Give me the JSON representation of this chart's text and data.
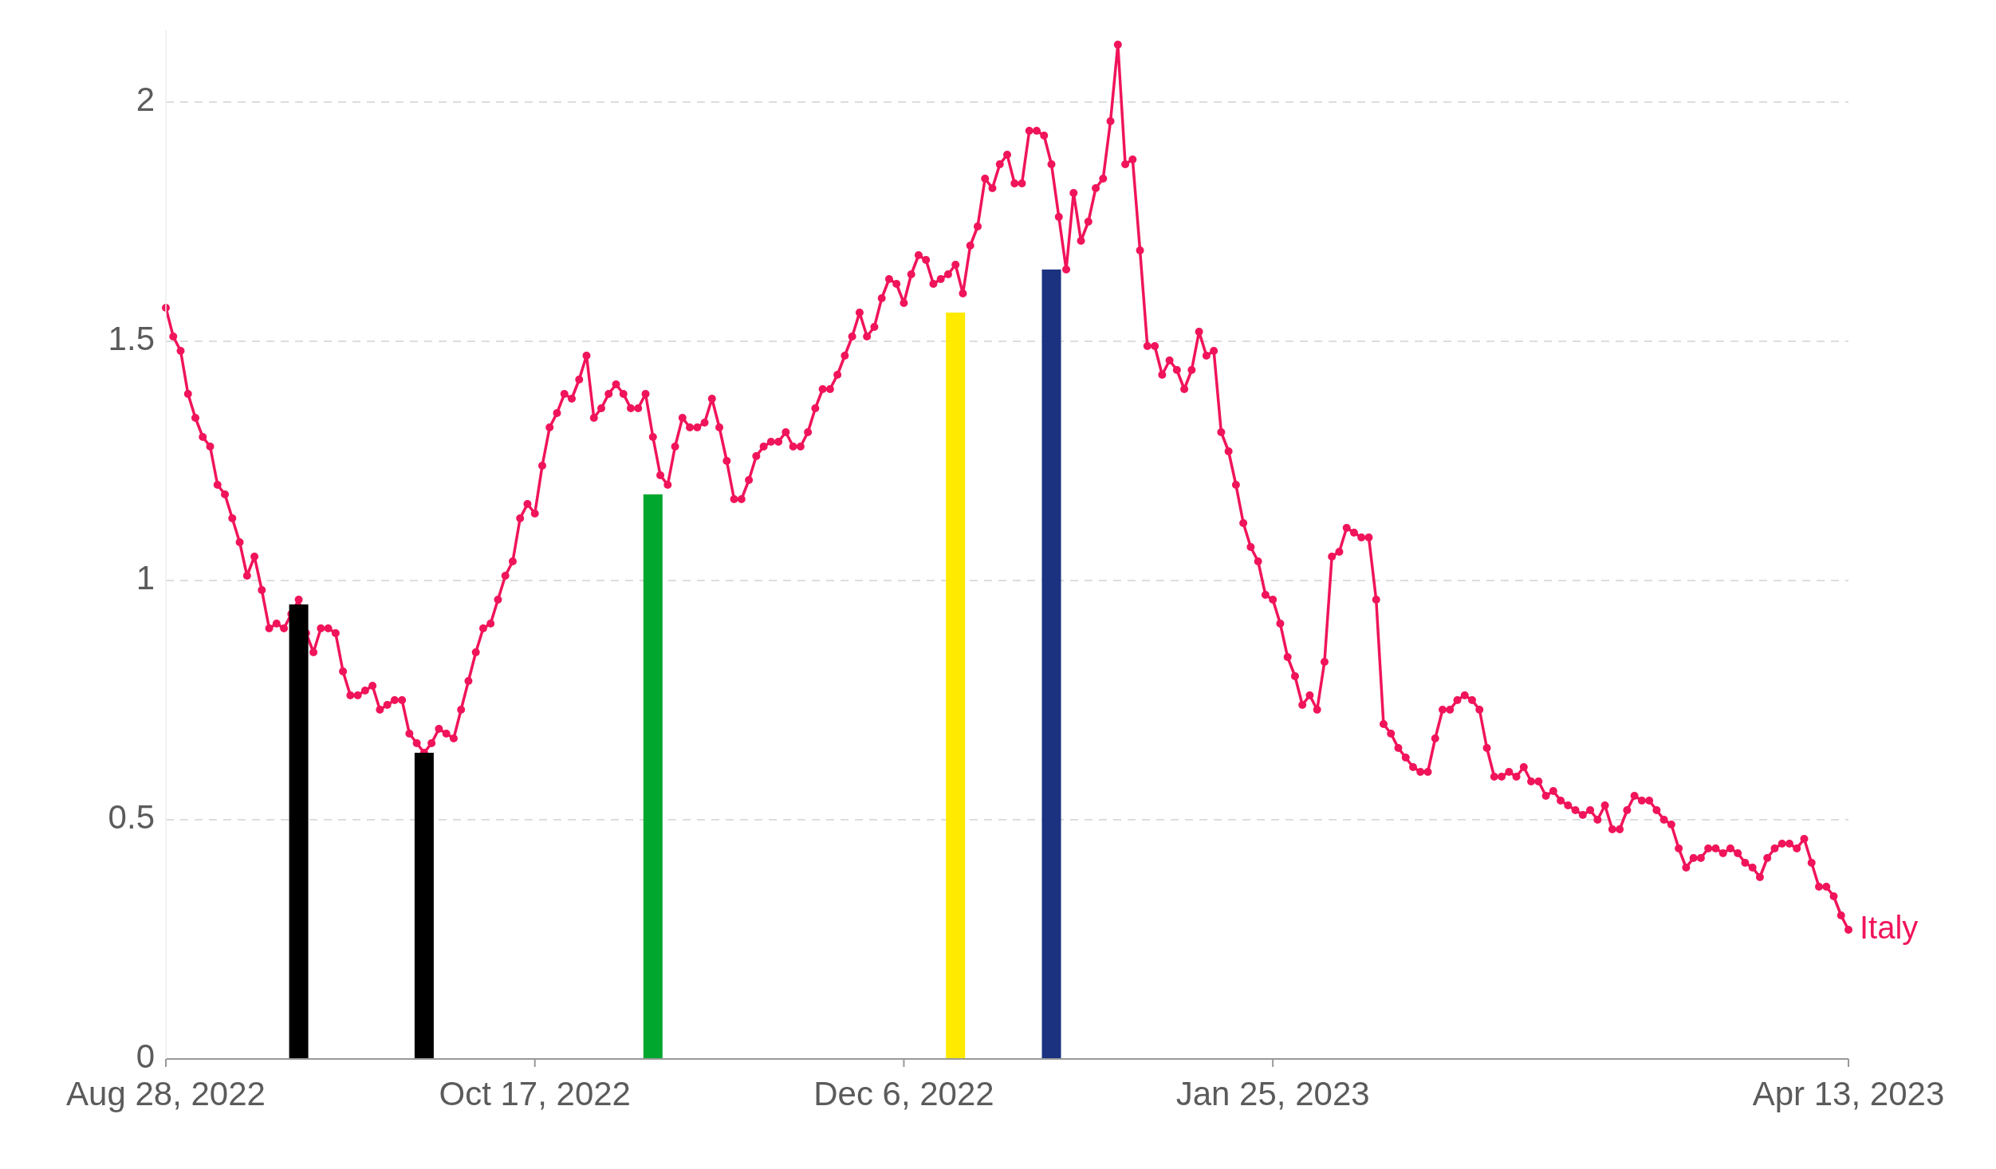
{
  "chart_data": {
    "type": "line",
    "xlim": [
      "2022-08-28",
      "2023-04-13"
    ],
    "xticks": [
      {
        "value": "2022-08-28",
        "label": "Aug 28, 2022"
      },
      {
        "value": "2022-10-17",
        "label": "Oct 17, 2022"
      },
      {
        "value": "2022-12-06",
        "label": "Dec 6, 2022"
      },
      {
        "value": "2023-01-25",
        "label": "Jan 25, 2023"
      },
      {
        "value": "2023-04-13",
        "label": "Apr 13, 2023"
      }
    ],
    "ylim": [
      0,
      2.15
    ],
    "yticks": [
      0,
      0.5,
      1,
      1.5,
      2
    ],
    "grid": "y",
    "legend": false,
    "marker": "circle",
    "line_style": "solid",
    "series": [
      {
        "name": "Italy",
        "color": "#f0145a",
        "x": [
          "2022-08-28",
          "2022-08-29",
          "2022-08-30",
          "2022-08-31",
          "2022-09-01",
          "2022-09-02",
          "2022-09-03",
          "2022-09-04",
          "2022-09-05",
          "2022-09-06",
          "2022-09-07",
          "2022-09-08",
          "2022-09-09",
          "2022-09-10",
          "2022-09-11",
          "2022-09-12",
          "2022-09-13",
          "2022-09-14",
          "2022-09-15",
          "2022-09-16",
          "2022-09-17",
          "2022-09-18",
          "2022-09-19",
          "2022-09-20",
          "2022-09-21",
          "2022-09-22",
          "2022-09-23",
          "2022-09-24",
          "2022-09-25",
          "2022-09-26",
          "2022-09-27",
          "2022-09-28",
          "2022-09-29",
          "2022-09-30",
          "2022-10-01",
          "2022-10-02",
          "2022-10-03",
          "2022-10-04",
          "2022-10-05",
          "2022-10-06",
          "2022-10-07",
          "2022-10-08",
          "2022-10-09",
          "2022-10-10",
          "2022-10-11",
          "2022-10-12",
          "2022-10-13",
          "2022-10-14",
          "2022-10-15",
          "2022-10-16",
          "2022-10-17",
          "2022-10-18",
          "2022-10-19",
          "2022-10-20",
          "2022-10-21",
          "2022-10-22",
          "2022-10-23",
          "2022-10-24",
          "2022-10-25",
          "2022-10-26",
          "2022-10-27",
          "2022-10-28",
          "2022-10-29",
          "2022-10-30",
          "2022-10-31",
          "2022-11-01",
          "2022-11-02",
          "2022-11-03",
          "2022-11-04",
          "2022-11-05",
          "2022-11-06",
          "2022-11-07",
          "2022-11-08",
          "2022-11-09",
          "2022-11-10",
          "2022-11-11",
          "2022-11-12",
          "2022-11-13",
          "2022-11-14",
          "2022-11-15",
          "2022-11-16",
          "2022-11-17",
          "2022-11-18",
          "2022-11-19",
          "2022-11-20",
          "2022-11-21",
          "2022-11-22",
          "2022-11-23",
          "2022-11-24",
          "2022-11-25",
          "2022-11-26",
          "2022-11-27",
          "2022-11-28",
          "2022-11-29",
          "2022-11-30",
          "2022-12-01",
          "2022-12-02",
          "2022-12-03",
          "2022-12-04",
          "2022-12-05",
          "2022-12-06",
          "2022-12-07",
          "2022-12-08",
          "2022-12-09",
          "2022-12-10",
          "2022-12-11",
          "2022-12-12",
          "2022-12-13",
          "2022-12-14",
          "2022-12-15",
          "2022-12-16",
          "2022-12-17",
          "2022-12-18",
          "2022-12-19",
          "2022-12-20",
          "2022-12-21",
          "2022-12-22",
          "2022-12-23",
          "2022-12-24",
          "2022-12-25",
          "2022-12-26",
          "2022-12-27",
          "2022-12-28",
          "2022-12-29",
          "2022-12-30",
          "2022-12-31",
          "2023-01-01",
          "2023-01-02",
          "2023-01-03",
          "2023-01-04",
          "2023-01-05",
          "2023-01-06",
          "2023-01-07",
          "2023-01-08",
          "2023-01-09",
          "2023-01-10",
          "2023-01-11",
          "2023-01-12",
          "2023-01-13",
          "2023-01-14",
          "2023-01-15",
          "2023-01-16",
          "2023-01-17",
          "2023-01-18",
          "2023-01-19",
          "2023-01-20",
          "2023-01-21",
          "2023-01-22",
          "2023-01-23",
          "2023-01-24",
          "2023-01-25",
          "2023-01-26",
          "2023-01-27",
          "2023-01-28",
          "2023-01-29",
          "2023-01-30",
          "2023-01-31",
          "2023-02-01",
          "2023-02-02",
          "2023-02-03",
          "2023-02-04",
          "2023-02-05",
          "2023-02-06",
          "2023-02-07",
          "2023-02-08",
          "2023-02-09",
          "2023-02-10",
          "2023-02-11",
          "2023-02-12",
          "2023-02-13",
          "2023-02-14",
          "2023-02-15",
          "2023-02-16",
          "2023-02-17",
          "2023-02-18",
          "2023-02-19",
          "2023-02-20",
          "2023-02-21",
          "2023-02-22",
          "2023-02-23",
          "2023-02-24",
          "2023-02-25",
          "2023-02-26",
          "2023-02-27",
          "2023-02-28",
          "2023-03-01",
          "2023-03-02",
          "2023-03-03",
          "2023-03-04",
          "2023-03-05",
          "2023-03-06",
          "2023-03-07",
          "2023-03-08",
          "2023-03-09",
          "2023-03-10",
          "2023-03-11",
          "2023-03-12",
          "2023-03-13",
          "2023-03-14",
          "2023-03-15",
          "2023-03-16",
          "2023-03-17",
          "2023-03-18",
          "2023-03-19",
          "2023-03-20",
          "2023-03-21",
          "2023-03-22",
          "2023-03-23",
          "2023-03-24",
          "2023-03-25",
          "2023-03-26",
          "2023-03-27",
          "2023-03-28",
          "2023-03-29",
          "2023-03-30",
          "2023-03-31",
          "2023-04-01",
          "2023-04-02",
          "2023-04-03",
          "2023-04-04",
          "2023-04-05",
          "2023-04-06",
          "2023-04-07",
          "2023-04-08",
          "2023-04-09",
          "2023-04-10",
          "2023-04-11",
          "2023-04-12",
          "2023-04-13"
        ],
        "values": [
          1.57,
          1.51,
          1.48,
          1.39,
          1.34,
          1.3,
          1.28,
          1.2,
          1.18,
          1.13,
          1.08,
          1.01,
          1.05,
          0.98,
          0.9,
          0.91,
          0.9,
          0.93,
          0.96,
          0.89,
          0.85,
          0.9,
          0.9,
          0.89,
          0.81,
          0.76,
          0.76,
          0.77,
          0.78,
          0.73,
          0.74,
          0.75,
          0.75,
          0.68,
          0.66,
          0.64,
          0.66,
          0.69,
          0.68,
          0.67,
          0.73,
          0.79,
          0.85,
          0.9,
          0.91,
          0.96,
          1.01,
          1.04,
          1.13,
          1.16,
          1.14,
          1.24,
          1.32,
          1.35,
          1.39,
          1.38,
          1.42,
          1.47,
          1.34,
          1.36,
          1.39,
          1.41,
          1.39,
          1.36,
          1.36,
          1.39,
          1.3,
          1.22,
          1.2,
          1.28,
          1.34,
          1.32,
          1.32,
          1.33,
          1.38,
          1.32,
          1.25,
          1.17,
          1.17,
          1.21,
          1.26,
          1.28,
          1.29,
          1.29,
          1.31,
          1.28,
          1.28,
          1.31,
          1.36,
          1.4,
          1.4,
          1.43,
          1.47,
          1.51,
          1.56,
          1.51,
          1.53,
          1.59,
          1.63,
          1.62,
          1.58,
          1.64,
          1.68,
          1.67,
          1.62,
          1.63,
          1.64,
          1.66,
          1.6,
          1.7,
          1.74,
          1.84,
          1.82,
          1.87,
          1.89,
          1.83,
          1.83,
          1.94,
          1.94,
          1.93,
          1.87,
          1.76,
          1.65,
          1.81,
          1.71,
          1.75,
          1.82,
          1.84,
          1.96,
          2.12,
          1.87,
          1.88,
          1.69,
          1.49,
          1.49,
          1.43,
          1.46,
          1.44,
          1.4,
          1.44,
          1.52,
          1.47,
          1.48,
          1.31,
          1.27,
          1.2,
          1.12,
          1.07,
          1.04,
          0.97,
          0.96,
          0.91,
          0.84,
          0.8,
          0.74,
          0.76,
          0.73,
          0.83,
          1.05,
          1.06,
          1.11,
          1.1,
          1.09,
          1.09,
          0.96,
          0.7,
          0.68,
          0.65,
          0.63,
          0.61,
          0.6,
          0.6,
          0.67,
          0.73,
          0.73,
          0.75,
          0.76,
          0.75,
          0.73,
          0.65,
          0.59,
          0.59,
          0.6,
          0.59,
          0.61,
          0.58,
          0.58,
          0.55,
          0.56,
          0.54,
          0.53,
          0.52,
          0.51,
          0.52,
          0.5,
          0.53,
          0.48,
          0.48,
          0.52,
          0.55,
          0.54,
          0.54,
          0.52,
          0.5,
          0.49,
          0.44,
          0.4,
          0.42,
          0.42,
          0.44,
          0.44,
          0.43,
          0.44,
          0.43,
          0.41,
          0.4,
          0.38,
          0.42,
          0.44,
          0.45,
          0.45,
          0.44,
          0.46,
          0.41,
          0.36,
          0.36,
          0.34,
          0.3,
          0.27
        ]
      },
      {
        "type": "bar",
        "x": [
          "2022-09-15",
          "2022-10-02",
          "2022-11-02",
          "2022-12-13",
          "2022-12-26"
        ],
        "values": [
          0.95,
          0.64,
          1.18,
          1.56,
          1.65
        ],
        "colors": [
          "#000000",
          "#000000",
          "#00a72f",
          "#ffea00",
          "#1b3281"
        ]
      }
    ]
  }
}
